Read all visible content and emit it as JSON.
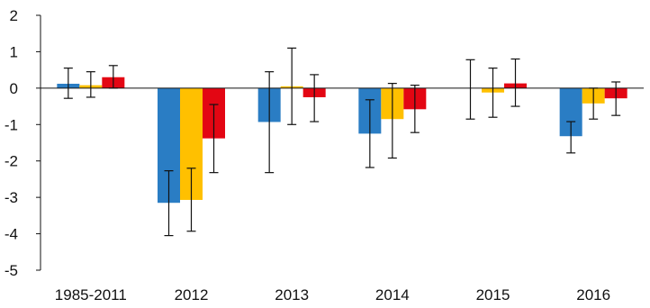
{
  "chart_data": {
    "type": "bar",
    "categories": [
      "1985-2011",
      "2012",
      "2013",
      "2014",
      "2015",
      "2016"
    ],
    "series": [
      {
        "color": "#2A7DC4",
        "values": [
          0.12,
          -3.15,
          -0.93,
          -1.25,
          0.0,
          -1.32
        ],
        "error": [
          [
            -0.28,
            0.55
          ],
          [
            -4.05,
            -2.27
          ],
          [
            -2.32,
            0.45
          ],
          [
            -2.18,
            -0.32
          ],
          [
            -0.85,
            0.78
          ],
          [
            -1.78,
            -0.92
          ]
        ]
      },
      {
        "color": "#FFC000",
        "values": [
          0.08,
          -3.07,
          0.05,
          -0.85,
          -0.12,
          -0.42
        ],
        "error": [
          [
            -0.25,
            0.45
          ],
          [
            -3.93,
            -2.2
          ],
          [
            -1.0,
            1.1
          ],
          [
            -1.92,
            0.13
          ],
          [
            -0.8,
            0.55
          ],
          [
            -0.85,
            0.0
          ]
        ]
      },
      {
        "color": "#E30613",
        "values": [
          0.3,
          -1.38,
          -0.25,
          -0.58,
          0.13,
          -0.28
        ],
        "error": [
          [
            0.0,
            0.62
          ],
          [
            -2.32,
            -0.45
          ],
          [
            -0.92,
            0.37
          ],
          [
            -1.22,
            0.08
          ],
          [
            -0.5,
            0.8
          ],
          [
            -0.75,
            0.17
          ]
        ]
      }
    ],
    "y_ticks": [
      "2",
      "1",
      "0",
      "-1",
      "-2",
      "-3",
      "-4",
      "-5"
    ],
    "ylim": [
      -5,
      2
    ],
    "grid": false,
    "xlabel": "",
    "ylabel": "",
    "title": ""
  }
}
